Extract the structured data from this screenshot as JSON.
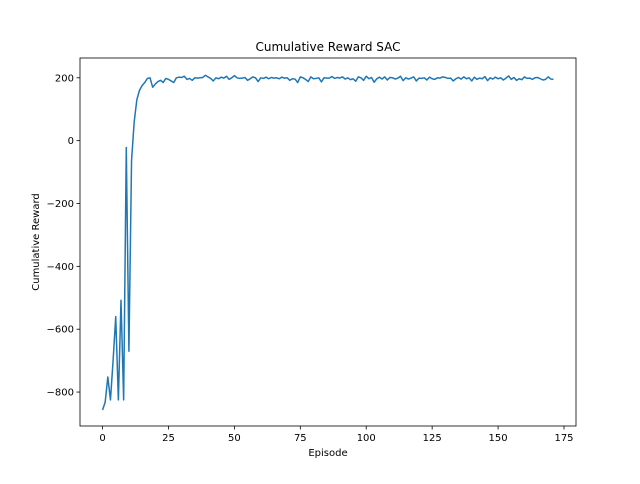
{
  "chart_data": {
    "type": "line",
    "title": "Cumulative Reward SAC",
    "xlabel": "Episode",
    "ylabel": "Cumulative Reward",
    "x": [
      0,
      1,
      2,
      3,
      4,
      5,
      6,
      7,
      8,
      9,
      10,
      11,
      12,
      13,
      14,
      15,
      16,
      17,
      18,
      19,
      20,
      21,
      22,
      23,
      24,
      25,
      26,
      27,
      28,
      29,
      30,
      31,
      32,
      33,
      34,
      35,
      36,
      37,
      38,
      39,
      40,
      41,
      42,
      43,
      44,
      45,
      46,
      47,
      48,
      49,
      50,
      51,
      52,
      53,
      54,
      55,
      56,
      57,
      58,
      59,
      60,
      61,
      62,
      63,
      64,
      65,
      66,
      67,
      68,
      69,
      70,
      71,
      72,
      73,
      74,
      75,
      76,
      77,
      78,
      79,
      80,
      81,
      82,
      83,
      84,
      85,
      86,
      87,
      88,
      89,
      90,
      91,
      92,
      93,
      94,
      95,
      96,
      97,
      98,
      99,
      100,
      101,
      102,
      103,
      104,
      105,
      106,
      107,
      108,
      109,
      110,
      111,
      112,
      113,
      114,
      115,
      116,
      117,
      118,
      119,
      120,
      121,
      122,
      123,
      124,
      125,
      126,
      127,
      128,
      129,
      130,
      131,
      132,
      133,
      134,
      135,
      136,
      137,
      138,
      139,
      140,
      141,
      142,
      143,
      144,
      145,
      146,
      147,
      148,
      149,
      150,
      151,
      152,
      153,
      154,
      155,
      156,
      157,
      158,
      159,
      160,
      161,
      162,
      163,
      164,
      165,
      166,
      167,
      168,
      169,
      170,
      171
    ],
    "series": [
      {
        "color": "#1f77b4",
        "values": [
          -857,
          -832,
          -752,
          -825,
          -700,
          -560,
          -825,
          -508,
          -825,
          -22,
          -670,
          -63,
          60,
          130,
          160,
          175,
          185,
          198,
          200,
          170,
          180,
          188,
          192,
          185,
          198,
          195,
          190,
          185,
          200,
          202,
          201,
          205,
          195,
          198,
          192,
          200,
          199,
          200,
          201,
          208,
          203,
          198,
          190,
          200,
          197,
          202,
          199,
          205,
          195,
          200,
          207,
          200,
          198,
          199,
          201,
          192,
          197,
          203,
          200,
          188,
          200,
          198,
          202,
          197,
          201,
          199,
          200,
          197,
          202,
          199,
          200,
          192,
          197,
          196,
          185,
          203,
          200,
          195,
          188,
          203,
          197,
          198,
          200,
          187,
          200,
          199,
          199,
          204,
          198,
          201,
          199,
          203,
          196,
          200,
          194,
          197,
          189,
          203,
          200,
          192,
          205,
          197,
          201,
          186,
          197,
          202,
          196,
          203,
          193,
          201,
          200,
          196,
          199,
          205,
          191,
          200,
          196,
          199,
          203,
          190,
          199,
          198,
          200,
          193,
          202,
          197,
          195,
          200,
          199,
          203,
          201,
          198,
          199,
          190,
          197,
          201,
          196,
          203,
          197,
          200,
          190,
          202,
          195,
          199,
          197,
          204,
          191,
          200,
          196,
          202,
          197,
          200,
          193,
          199,
          206,
          195,
          201,
          192,
          197,
          194,
          203,
          198,
          199,
          195,
          200,
          201,
          197,
          193,
          195,
          203,
          196,
          195
        ]
      }
    ],
    "xlim": [
      -8.55,
      179.55
    ],
    "ylim": [
      -908,
      263
    ],
    "xticks": [
      0,
      25,
      50,
      75,
      100,
      125,
      150,
      175
    ],
    "yticks": [
      {
        "value": -800,
        "label": "−800"
      },
      {
        "value": -600,
        "label": "−600"
      },
      {
        "value": -400,
        "label": "−400"
      },
      {
        "value": -200,
        "label": "−200"
      },
      0,
      200
    ],
    "grid": false
  }
}
